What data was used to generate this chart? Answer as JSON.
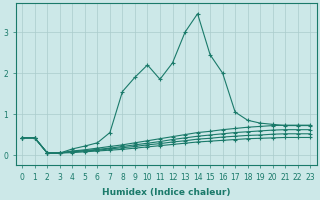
{
  "xlabel": "Humidex (Indice chaleur)",
  "background_color": "#cce8e8",
  "grid_color": "#aacccc",
  "line_color": "#1a7a6a",
  "xlim": [
    -0.5,
    23.5
  ],
  "ylim": [
    -0.25,
    3.7
  ],
  "yticks": [
    0,
    1,
    2,
    3
  ],
  "xticks": [
    0,
    1,
    2,
    3,
    4,
    5,
    6,
    7,
    8,
    9,
    10,
    11,
    12,
    13,
    14,
    15,
    16,
    17,
    18,
    19,
    20,
    21,
    22,
    23
  ],
  "lines": [
    {
      "x": [
        0,
        1,
        2,
        3,
        4,
        5,
        6,
        7,
        8,
        9,
        10,
        11,
        12,
        13,
        14,
        15,
        16,
        17,
        18,
        19,
        20,
        21,
        22,
        23
      ],
      "y": [
        0.42,
        0.42,
        0.05,
        0.05,
        0.15,
        0.22,
        0.3,
        0.55,
        1.55,
        1.9,
        2.2,
        1.85,
        2.25,
        3.0,
        3.45,
        2.45,
        2.0,
        1.05,
        0.85,
        0.78,
        0.75,
        0.72,
        0.72,
        0.72
      ]
    },
    {
      "x": [
        0,
        1,
        2,
        3,
        4,
        5,
        6,
        7,
        8,
        9,
        10,
        11,
        12,
        13,
        14,
        15,
        16,
        17,
        18,
        19,
        20,
        21,
        22,
        23
      ],
      "y": [
        0.42,
        0.42,
        0.05,
        0.05,
        0.1,
        0.13,
        0.17,
        0.21,
        0.25,
        0.3,
        0.35,
        0.4,
        0.45,
        0.5,
        0.55,
        0.58,
        0.62,
        0.65,
        0.68,
        0.7,
        0.72,
        0.73,
        0.73,
        0.73
      ]
    },
    {
      "x": [
        0,
        1,
        2,
        3,
        4,
        5,
        6,
        7,
        8,
        9,
        10,
        11,
        12,
        13,
        14,
        15,
        16,
        17,
        18,
        19,
        20,
        21,
        22,
        23
      ],
      "y": [
        0.42,
        0.42,
        0.05,
        0.05,
        0.09,
        0.11,
        0.14,
        0.17,
        0.21,
        0.25,
        0.29,
        0.33,
        0.38,
        0.42,
        0.46,
        0.49,
        0.52,
        0.55,
        0.57,
        0.59,
        0.61,
        0.62,
        0.62,
        0.62
      ]
    },
    {
      "x": [
        0,
        1,
        2,
        3,
        4,
        5,
        6,
        7,
        8,
        9,
        10,
        11,
        12,
        13,
        14,
        15,
        16,
        17,
        18,
        19,
        20,
        21,
        22,
        23
      ],
      "y": [
        0.42,
        0.42,
        0.05,
        0.05,
        0.08,
        0.1,
        0.12,
        0.15,
        0.18,
        0.21,
        0.25,
        0.28,
        0.32,
        0.35,
        0.39,
        0.41,
        0.44,
        0.46,
        0.48,
        0.49,
        0.51,
        0.52,
        0.52,
        0.52
      ]
    },
    {
      "x": [
        0,
        1,
        2,
        3,
        4,
        5,
        6,
        7,
        8,
        9,
        10,
        11,
        12,
        13,
        14,
        15,
        16,
        17,
        18,
        19,
        20,
        21,
        22,
        23
      ],
      "y": [
        0.42,
        0.42,
        0.05,
        0.05,
        0.06,
        0.08,
        0.1,
        0.12,
        0.14,
        0.17,
        0.2,
        0.23,
        0.26,
        0.29,
        0.32,
        0.34,
        0.36,
        0.38,
        0.4,
        0.41,
        0.42,
        0.43,
        0.43,
        0.43
      ]
    }
  ]
}
